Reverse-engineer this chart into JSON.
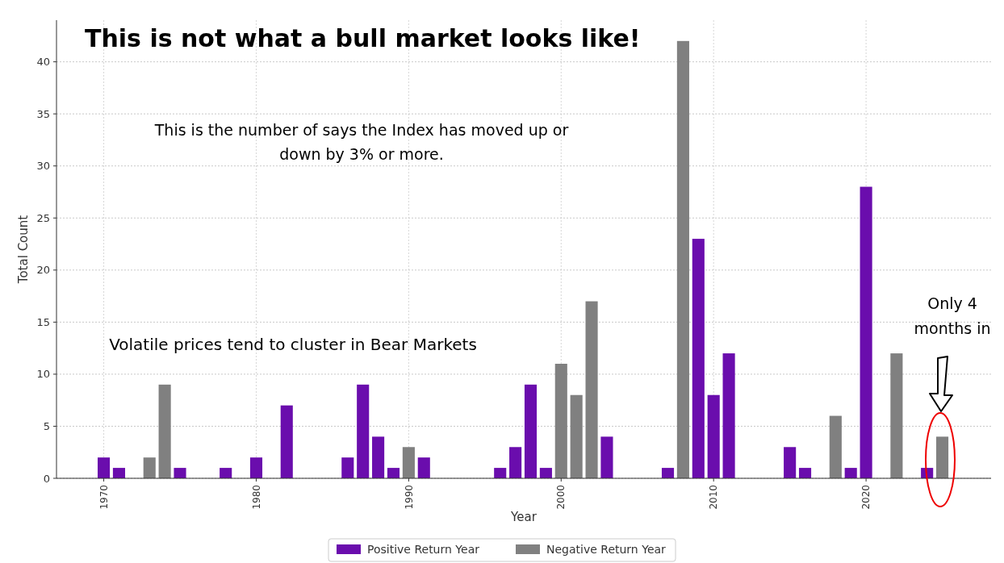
{
  "chart_data": {
    "type": "bar",
    "title": "This is not what a bull market looks like!",
    "xlabel": "Year",
    "ylabel": "Total Count",
    "series": [
      {
        "name": "Positive Return Year",
        "color": "#6a0dad",
        "x": [
          1970,
          1971,
          1975,
          1978,
          1980,
          1982,
          1986,
          1987,
          1988,
          1989,
          1991,
          1996,
          1997,
          1998,
          1999,
          2003,
          2007,
          2009,
          2010,
          2011,
          2015,
          2016,
          2019,
          2020,
          2024
        ],
        "values": [
          2,
          1,
          1,
          1,
          2,
          7,
          2,
          9,
          4,
          1,
          2,
          1,
          3,
          9,
          1,
          4,
          1,
          23,
          8,
          12,
          3,
          1,
          1,
          28,
          1
        ]
      },
      {
        "name": "Negative Return Year",
        "color": "#808080",
        "x": [
          1973,
          1974,
          1990,
          2000,
          2001,
          2002,
          2008,
          2018,
          2022,
          2025
        ],
        "values": [
          2,
          9,
          3,
          11,
          8,
          17,
          42,
          6,
          12,
          4
        ]
      }
    ],
    "xlim": [
      1966.9,
      2028.2
    ],
    "xticks": [
      1970,
      1980,
      1990,
      2000,
      2010,
      2020
    ],
    "ylim": [
      0,
      44
    ],
    "yticks": [
      0,
      5,
      10,
      15,
      20,
      25,
      30,
      35,
      40
    ],
    "grid": true,
    "legend": "bottom",
    "annotations": [
      "This is the number of says the Index has moved up or down by 3% or more.",
      "Volatile prices tend to cluster in Bear Markets",
      "Only 4 months in"
    ]
  }
}
